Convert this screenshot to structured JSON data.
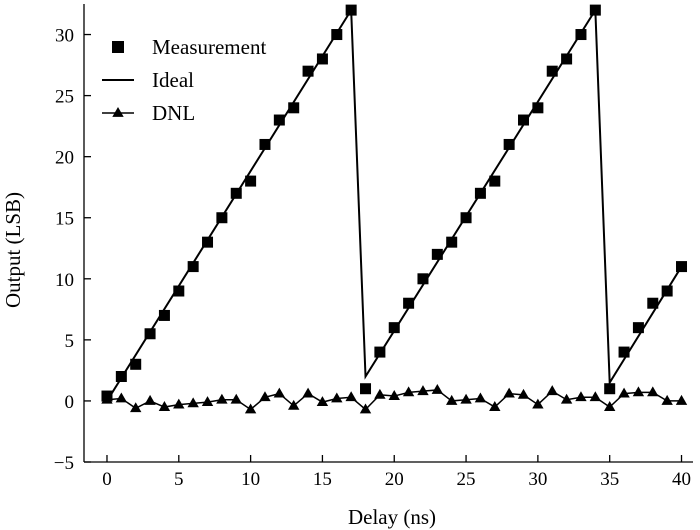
{
  "chart_data": {
    "type": "line",
    "title": "",
    "xlabel": "Delay (ns)",
    "ylabel": "Output (LSB)",
    "xlim": [
      -1.6,
      40.8
    ],
    "ylim": [
      -5,
      32.5
    ],
    "xticks": [
      0,
      5,
      10,
      15,
      20,
      25,
      30,
      35,
      40
    ],
    "yticks": [
      -5,
      0,
      5,
      10,
      15,
      20,
      25,
      30
    ],
    "grid": false,
    "legend_position": "top-left",
    "series": [
      {
        "name": "Measurement",
        "style": "square-markers",
        "x": [
          0,
          1,
          2,
          3,
          4,
          5,
          6,
          7,
          8,
          9,
          10,
          11,
          12,
          13,
          14,
          15,
          16,
          17,
          18,
          19,
          20,
          21,
          22,
          23,
          24,
          25,
          26,
          27,
          28,
          29,
          30,
          31,
          32,
          33,
          34,
          35,
          36,
          37,
          38,
          39,
          40
        ],
        "y": [
          0.4,
          2,
          3,
          5.5,
          7,
          9,
          11,
          13,
          15,
          17,
          18,
          21,
          23,
          24,
          27,
          28,
          30,
          32,
          1,
          4,
          6,
          8,
          10,
          12,
          13,
          15,
          17,
          18,
          21,
          23,
          24,
          27,
          28,
          30,
          32,
          1,
          4,
          6,
          8,
          9,
          11
        ]
      },
      {
        "name": "Ideal",
        "style": "line",
        "x": [
          0,
          17,
          18,
          34,
          35,
          40
        ],
        "y": [
          0,
          32,
          2,
          32,
          1.5,
          11
        ]
      },
      {
        "name": "DNL",
        "style": "triangle-markers-line",
        "x": [
          0,
          1,
          2,
          3,
          4,
          5,
          6,
          7,
          8,
          9,
          10,
          11,
          12,
          13,
          14,
          15,
          16,
          17,
          18,
          19,
          20,
          21,
          22,
          23,
          24,
          25,
          26,
          27,
          28,
          29,
          30,
          31,
          32,
          33,
          34,
          35,
          36,
          37,
          38,
          39,
          40
        ],
        "y": [
          0.1,
          0.2,
          -0.6,
          0,
          -0.5,
          -0.3,
          -0.2,
          -0.1,
          0.1,
          0.1,
          -0.7,
          0.3,
          0.6,
          -0.4,
          0.6,
          -0.1,
          0.2,
          0.3,
          -0.7,
          0.5,
          0.4,
          0.7,
          0.8,
          0.9,
          0,
          0.1,
          0.2,
          -0.5,
          0.6,
          0.5,
          -0.3,
          0.8,
          0.1,
          0.3,
          0.3,
          -0.5,
          0.6,
          0.7,
          0.7,
          0,
          0
        ]
      }
    ]
  }
}
